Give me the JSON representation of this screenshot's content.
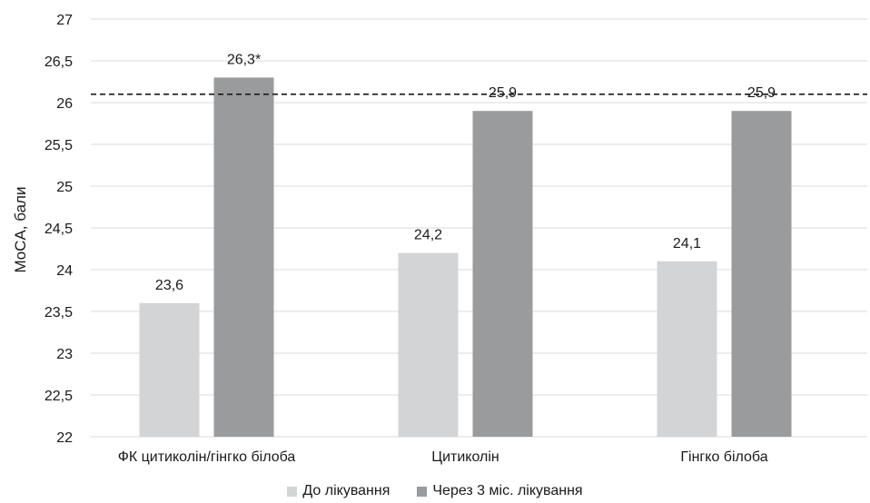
{
  "chart_data": {
    "type": "bar",
    "ylabel": "MoCA, бали",
    "ylim": [
      22,
      27
    ],
    "yticks": [
      "22",
      "22,5",
      "23",
      "23,5",
      "24",
      "24,5",
      "25",
      "25,5",
      "26",
      "26,5",
      "27"
    ],
    "categories": [
      "ФК цитиколін/гінгко білоба",
      "Цитиколін",
      "Гінгко білоба"
    ],
    "series": [
      {
        "name": "До лікування",
        "values": [
          23.6,
          24.2,
          24.1
        ],
        "labels": [
          "23,6",
          "24,2",
          "24,1"
        ],
        "color": "#d3d4d6"
      },
      {
        "name": "Через 3 міс. лікування",
        "values": [
          26.3,
          25.9,
          25.9
        ],
        "labels": [
          "26,3*",
          "25,9",
          "25,9"
        ],
        "color": "#9a9b9d"
      }
    ],
    "reference_line": {
      "value": 26.1,
      "style": "dashed"
    },
    "grid": true,
    "legend_position": "bottom"
  }
}
